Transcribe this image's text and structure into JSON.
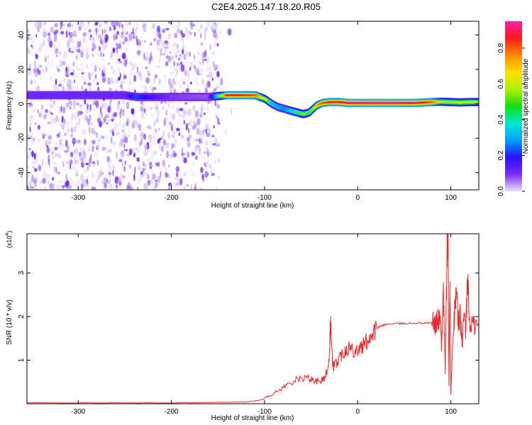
{
  "title": "C2E4.2025.147.18.20.R05",
  "colors": {
    "trace": "#e8282a",
    "noise": "#7a2cf2",
    "frame": "#000000",
    "background": "#ffffff"
  },
  "chart_data": [
    {
      "type": "heatmap",
      "xlabel": "Height of straight line (km)",
      "ylabel": "Frequency (Hz)",
      "xlim": [
        -355,
        130
      ],
      "ylim": [
        -50,
        48
      ],
      "xticks": [
        -300,
        -200,
        -100,
        0,
        100
      ],
      "xtick_labels": [
        "-300",
        "-200",
        "-100",
        "0",
        "100"
      ],
      "yticks": [
        -40,
        -20,
        0,
        20,
        40
      ],
      "ytick_labels": [
        "-40",
        "-20",
        "0",
        "20",
        "40"
      ],
      "colorbar": {
        "label": "Normalized spectral amplitude",
        "range": [
          0,
          0.95
        ],
        "ticks": [
          0,
          0.2,
          0.4,
          0.6,
          0.8
        ],
        "tick_labels": [
          "0.0",
          "0.2",
          "0.4",
          "0.6",
          "0.8"
        ],
        "colormap": [
          "#e8e2f8",
          "#7a2cf2",
          "#2a10ff",
          "#00a0ff",
          "#00e8d0",
          "#10e010",
          "#b0f000",
          "#ffe000",
          "#ff8a00",
          "#ff1a1a",
          "#ff20a0"
        ]
      },
      "noise_region_x": [
        -355,
        -148
      ],
      "ridge": {
        "x": [
          -355,
          -300,
          -250,
          -238,
          -200,
          -160,
          -150,
          -140,
          -125,
          -110,
          -100,
          -92,
          -85,
          -78,
          -72,
          -65,
          -58,
          -52,
          -48,
          -44,
          -38,
          -30,
          -20,
          -10,
          0,
          20,
          40,
          60,
          80,
          90,
          100,
          110,
          120,
          130
        ],
        "frequency": [
          5,
          5,
          5,
          4,
          4,
          4,
          4.5,
          5,
          5,
          5,
          3,
          0,
          -2,
          -3,
          -4,
          -5,
          -6,
          -5,
          -3,
          -1,
          0.5,
          1,
          1,
          0.5,
          0.5,
          0.5,
          0.5,
          0.5,
          1,
          1.2,
          1,
          0.8,
          1,
          1
        ],
        "amplitude": [
          0.15,
          0.15,
          0.15,
          0.3,
          0.12,
          0.1,
          0.45,
          0.85,
          0.85,
          0.8,
          0.6,
          0.45,
          0.4,
          0.35,
          0.45,
          0.5,
          0.55,
          0.5,
          0.55,
          0.7,
          0.8,
          0.85,
          0.85,
          0.9,
          0.92,
          0.93,
          0.93,
          0.9,
          0.8,
          0.6,
          0.55,
          0.6,
          0.6,
          0.55
        ]
      }
    },
    {
      "type": "line",
      "xlabel": "Height of straight line (km)",
      "ylabel": "SNR (10 * v/v)",
      "y_multiplier_label": "(x10",
      "y_multiplier_exp": "4",
      "xlim": [
        -355,
        130
      ],
      "ylim": [
        0,
        3.9
      ],
      "xticks": [
        -300,
        -200,
        -100,
        0,
        100
      ],
      "xtick_labels": [
        "-300",
        "-200",
        "-100",
        "0",
        "100"
      ],
      "yticks": [
        1,
        2,
        3
      ],
      "ytick_labels": [
        "1",
        "2",
        "3"
      ],
      "series": [
        {
          "color": "#e8282a",
          "x": [
            -355,
            -300,
            -250,
            -200,
            -150,
            -120,
            -105,
            -95,
            -85,
            -75,
            -65,
            -55,
            -48,
            -42,
            -38,
            -35,
            -31,
            -29,
            -27,
            -25,
            -20,
            -15,
            -10,
            -5,
            0,
            5,
            10,
            15,
            20,
            25,
            30,
            40,
            50,
            60,
            70,
            80,
            84,
            86,
            88,
            90,
            92,
            94,
            96,
            97,
            98,
            99,
            100,
            102,
            104,
            106,
            108,
            110,
            112,
            114,
            116,
            118,
            120,
            125,
            130
          ],
          "y": [
            0.02,
            0.02,
            0.02,
            0.02,
            0.03,
            0.04,
            0.08,
            0.18,
            0.3,
            0.45,
            0.55,
            0.6,
            0.55,
            0.5,
            0.55,
            0.6,
            0.95,
            1.9,
            0.9,
            0.85,
            1.05,
            1.2,
            1.3,
            1.25,
            1.25,
            1.3,
            1.45,
            1.6,
            1.72,
            1.78,
            1.82,
            1.84,
            1.84,
            1.85,
            1.85,
            1.86,
            1.85,
            1.9,
            2.0,
            1.4,
            2.5,
            0.8,
            3.5,
            3.9,
            0.35,
            2.8,
            0.2,
            1.5,
            2.1,
            2.5,
            1.85,
            2.1,
            1.3,
            2.0,
            1.6,
            2.9,
            1.85,
            1.8,
            1.78
          ]
        }
      ]
    }
  ]
}
